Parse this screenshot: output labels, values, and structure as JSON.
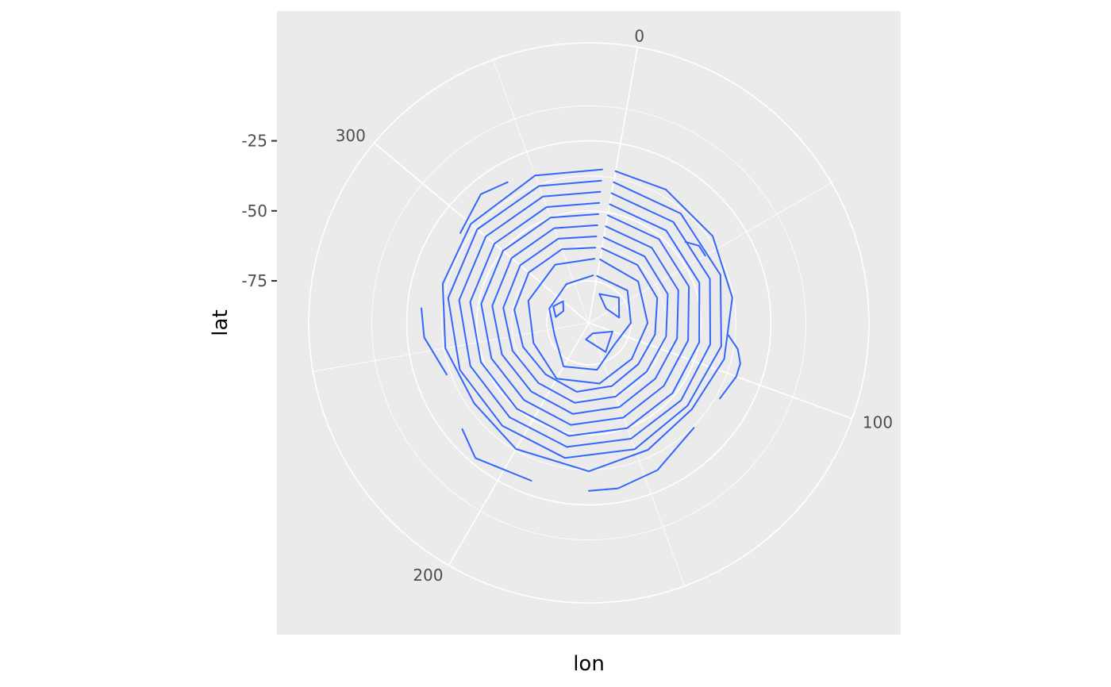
{
  "chart_data": {
    "type": "line",
    "subtype": "density contour in polar coordinates",
    "title": "",
    "xlabel": "lon",
    "ylabel": "lat",
    "x_ticks": [
      {
        "value": 0,
        "label": "0"
      },
      {
        "value": 100,
        "label": "100"
      },
      {
        "value": 200,
        "label": "200"
      },
      {
        "value": 300,
        "label": "300"
      }
    ],
    "x_range": [
      0,
      360
    ],
    "y_ticks": [
      {
        "value": -25,
        "label": "-25"
      },
      {
        "value": -50,
        "label": "-50"
      },
      {
        "value": -75,
        "label": "-75"
      }
    ],
    "y_range": [
      -90,
      10
    ],
    "grid": true,
    "contour_color": "#3366FF",
    "series": [
      {
        "points": [
          [
            0,
            -35
          ],
          [
            20,
            -35
          ],
          [
            45,
            -36
          ],
          [
            70,
            -38
          ],
          [
            95,
            -40
          ],
          [
            120,
            -42
          ],
          [
            145,
            -40
          ],
          [
            170,
            -37
          ],
          [
            200,
            -38
          ],
          [
            225,
            -40
          ],
          [
            250,
            -38
          ],
          [
            275,
            -36
          ],
          [
            300,
            -35
          ],
          [
            330,
            -34
          ],
          [
            355,
            -35
          ]
        ]
      },
      {
        "points": [
          [
            0,
            -39
          ],
          [
            30,
            -39
          ],
          [
            60,
            -40
          ],
          [
            90,
            -42
          ],
          [
            120,
            -44
          ],
          [
            150,
            -42
          ],
          [
            180,
            -41
          ],
          [
            210,
            -42
          ],
          [
            240,
            -41
          ],
          [
            270,
            -39
          ],
          [
            300,
            -38
          ],
          [
            330,
            -38
          ],
          [
            355,
            -39
          ]
        ]
      },
      {
        "points": [
          [
            0,
            -43
          ],
          [
            30,
            -43
          ],
          [
            60,
            -44
          ],
          [
            90,
            -46
          ],
          [
            120,
            -47
          ],
          [
            150,
            -46
          ],
          [
            180,
            -45
          ],
          [
            210,
            -46
          ],
          [
            240,
            -45
          ],
          [
            270,
            -43
          ],
          [
            300,
            -42
          ],
          [
            330,
            -42
          ],
          [
            355,
            -43
          ]
        ]
      },
      {
        "points": [
          [
            0,
            -47
          ],
          [
            30,
            -47
          ],
          [
            60,
            -48
          ],
          [
            90,
            -50
          ],
          [
            120,
            -51
          ],
          [
            150,
            -50
          ],
          [
            180,
            -49
          ],
          [
            210,
            -50
          ],
          [
            240,
            -49
          ],
          [
            270,
            -47
          ],
          [
            300,
            -46
          ],
          [
            330,
            -46
          ],
          [
            355,
            -47
          ]
        ]
      },
      {
        "points": [
          [
            0,
            -51
          ],
          [
            30,
            -51
          ],
          [
            60,
            -52
          ],
          [
            90,
            -54
          ],
          [
            120,
            -55
          ],
          [
            150,
            -54
          ],
          [
            180,
            -53
          ],
          [
            210,
            -54
          ],
          [
            240,
            -53
          ],
          [
            270,
            -51
          ],
          [
            300,
            -50
          ],
          [
            330,
            -50
          ],
          [
            355,
            -51
          ]
        ]
      },
      {
        "points": [
          [
            0,
            -55
          ],
          [
            30,
            -55
          ],
          [
            60,
            -56
          ],
          [
            90,
            -58
          ],
          [
            120,
            -59
          ],
          [
            150,
            -58
          ],
          [
            180,
            -57
          ],
          [
            210,
            -58
          ],
          [
            240,
            -57
          ],
          [
            270,
            -55
          ],
          [
            300,
            -54
          ],
          [
            330,
            -54
          ],
          [
            355,
            -55
          ]
        ]
      },
      {
        "points": [
          [
            0,
            -59
          ],
          [
            30,
            -59
          ],
          [
            60,
            -60
          ],
          [
            90,
            -62
          ],
          [
            120,
            -63
          ],
          [
            150,
            -62
          ],
          [
            180,
            -61
          ],
          [
            210,
            -62
          ],
          [
            240,
            -61
          ],
          [
            270,
            -59
          ],
          [
            300,
            -58
          ],
          [
            330,
            -58
          ],
          [
            355,
            -59
          ]
        ]
      },
      {
        "points": [
          [
            0,
            -63
          ],
          [
            30,
            -63
          ],
          [
            60,
            -64
          ],
          [
            90,
            -66
          ],
          [
            120,
            -67
          ],
          [
            150,
            -66
          ],
          [
            180,
            -65
          ],
          [
            210,
            -66
          ],
          [
            240,
            -65
          ],
          [
            270,
            -63
          ],
          [
            300,
            -62
          ],
          [
            330,
            -62
          ],
          [
            355,
            -63
          ]
        ]
      },
      {
        "points": [
          [
            0,
            -67
          ],
          [
            40,
            -67
          ],
          [
            80,
            -69
          ],
          [
            120,
            -70
          ],
          [
            160,
            -68
          ],
          [
            200,
            -67
          ],
          [
            240,
            -69
          ],
          [
            280,
            -67
          ],
          [
            320,
            -66
          ],
          [
            355,
            -67
          ]
        ]
      },
      {
        "points": [
          [
            0,
            -73
          ],
          [
            40,
            -72
          ],
          [
            80,
            -75
          ],
          [
            120,
            -78
          ],
          [
            160,
            -73
          ],
          [
            200,
            -72
          ],
          [
            240,
            -77
          ],
          [
            280,
            -75
          ],
          [
            320,
            -74
          ],
          [
            355,
            -73
          ]
        ]
      },
      {
        "points": [
          [
            10,
            -79
          ],
          [
            40,
            -76
          ],
          [
            70,
            -79
          ],
          [
            40,
            -82
          ],
          [
            10,
            -79
          ]
        ]
      },
      {
        "points": [
          [
            100,
            -81
          ],
          [
            140,
            -78
          ],
          [
            180,
            -84
          ],
          [
            150,
            -86
          ],
          [
            100,
            -81
          ]
        ]
      },
      {
        "points": [
          [
            270,
            -78
          ],
          [
            285,
            -76
          ],
          [
            300,
            -78
          ],
          [
            285,
            -80
          ],
          [
            270,
            -78
          ]
        ]
      },
      {
        "points": [
          [
            40,
            -45
          ],
          [
            45,
            -42
          ],
          [
            50,
            -42
          ]
        ]
      },
      {
        "points": [
          [
            85,
            -40
          ],
          [
            90,
            -36
          ],
          [
            95,
            -34
          ],
          [
            100,
            -34
          ],
          [
            110,
            -36
          ]
        ]
      },
      {
        "points": [
          [
            125,
            -37
          ],
          [
            145,
            -32
          ],
          [
            160,
            -30
          ],
          [
            170,
            -30
          ]
        ]
      },
      {
        "points": [
          [
            190,
            -30
          ],
          [
            210,
            -27
          ],
          [
            220,
            -31
          ]
        ]
      },
      {
        "points": [
          [
            240,
            -36
          ],
          [
            255,
            -31
          ],
          [
            265,
            -30
          ]
        ]
      },
      {
        "points": [
          [
            295,
            -34
          ],
          [
            310,
            -30
          ],
          [
            320,
            -32
          ]
        ]
      }
    ]
  }
}
